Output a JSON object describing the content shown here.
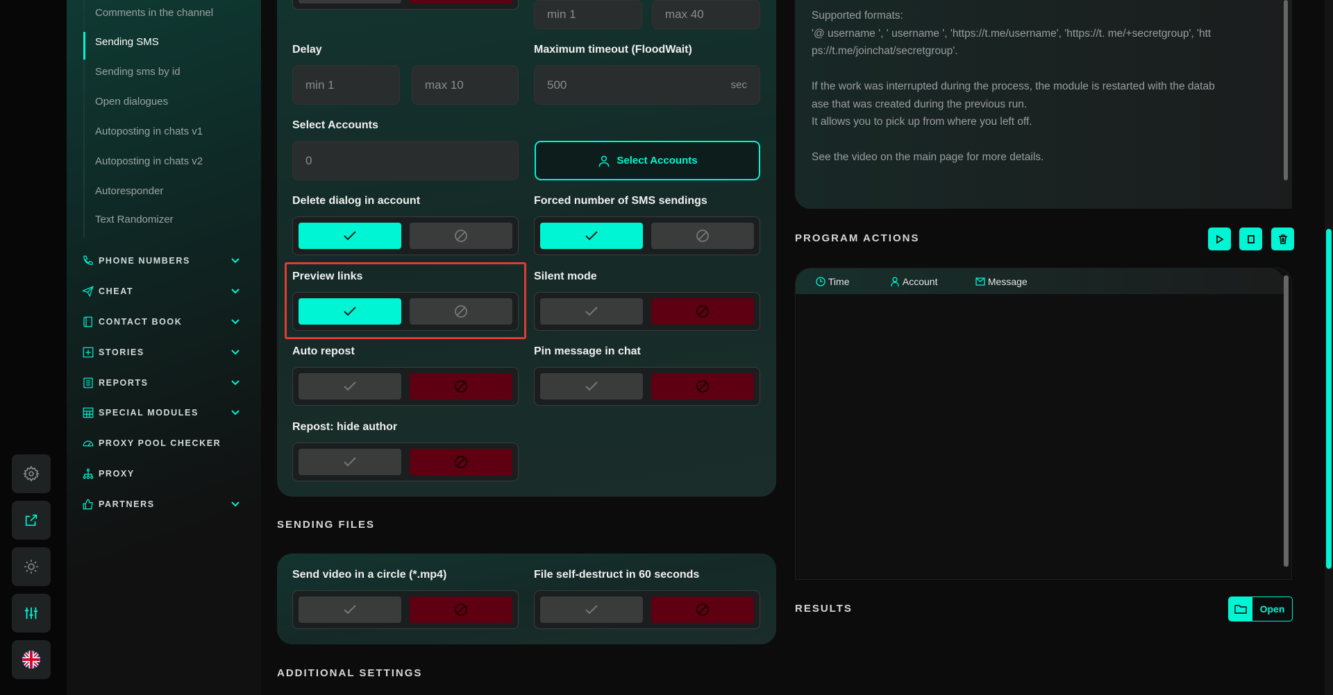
{
  "colors": {
    "accent": "#00f5d4",
    "danger": "#5e0012",
    "highlight": "#e23b32"
  },
  "iconbar": [
    {
      "icon": "gear-icon"
    },
    {
      "icon": "external-link-icon"
    },
    {
      "icon": "sun-icon"
    },
    {
      "icon": "sliders-icon"
    },
    {
      "icon": "uk-flag-icon"
    }
  ],
  "sidebar": {
    "subitems": [
      "Comments in the channel",
      "Sending SMS",
      "Sending sms by id",
      "Open dialogues",
      "Autoposting in chats v1",
      "Autoposting in chats v2",
      "Autoresponder",
      "Text Randomizer"
    ],
    "active": "Sending SMS",
    "sections": [
      {
        "label": "PHONE NUMBERS",
        "icon": "phone-icon",
        "chevron": true
      },
      {
        "label": "CHEAT",
        "icon": "send-icon",
        "chevron": true
      },
      {
        "label": "CONTACT BOOK",
        "icon": "book-icon",
        "chevron": true
      },
      {
        "label": "STORIES",
        "icon": "plus-square-icon",
        "chevron": true
      },
      {
        "label": "REPORTS",
        "icon": "report-icon",
        "chevron": true
      },
      {
        "label": "SPECIAL MODULES",
        "icon": "calculator-icon",
        "chevron": true
      },
      {
        "label": "PROXY POOL CHECKER",
        "icon": "gauge-icon",
        "chevron": false
      },
      {
        "label": "PROXY",
        "icon": "network-icon",
        "chevron": false
      },
      {
        "label": "PARTNERS",
        "icon": "thumbs-up-icon",
        "chevron": true
      }
    ]
  },
  "settings": {
    "top_min": "min  1",
    "top_max": "max  40",
    "delay": {
      "label": "Delay",
      "min": "min  1",
      "max": "max  10"
    },
    "timeout": {
      "label": "Maximum timeout (FloodWait)",
      "value": "500",
      "unit": "sec"
    },
    "accounts": {
      "label": "Select Accounts",
      "value": "0",
      "button": "Select Accounts"
    },
    "toggles": [
      {
        "key": "top",
        "label": "",
        "value": false
      },
      {
        "key": "delete_dialog",
        "label": "Delete dialog in account",
        "value": true
      },
      {
        "key": "forced_number",
        "label": "Forced number of SMS sendings",
        "value": true
      },
      {
        "key": "preview_links",
        "label": "Preview links",
        "value": true
      },
      {
        "key": "silent_mode",
        "label": "Silent mode",
        "value": false
      },
      {
        "key": "auto_repost",
        "label": "Auto repost",
        "value": false
      },
      {
        "key": "pin_message",
        "label": "Pin message in chat",
        "value": false
      },
      {
        "key": "repost_hide_author",
        "label": "Repost: hide author",
        "value": false
      },
      {
        "key": "video_circle",
        "label": "Send video in a circle (*.mp4)",
        "value": false
      },
      {
        "key": "self_destruct",
        "label": "File self-destruct in 60 seconds",
        "value": false
      }
    ]
  },
  "sections": {
    "sending_files": "SENDING FILES",
    "additional": "ADDITIONAL SETTINGS"
  },
  "help": {
    "lines": [
      "Supported formats:",
      "'@ username ', ' username ', 'https://t.me/username', 'https://t. me/+secretgroup', 'htt",
      "ps://t.me/joinchat/secretgroup'.",
      "",
      "If the work was interrupted during the process, the module is restarted with the datab",
      "ase that was created during the previous run.",
      "It allows you to pick up from where you left off.",
      "",
      "See the video on the main page for more details."
    ]
  },
  "actions": {
    "title": "PROGRAM ACTIONS",
    "columns": [
      "Time",
      "Account",
      "Message"
    ]
  },
  "results": {
    "title": "RESULTS",
    "open": "Open"
  }
}
